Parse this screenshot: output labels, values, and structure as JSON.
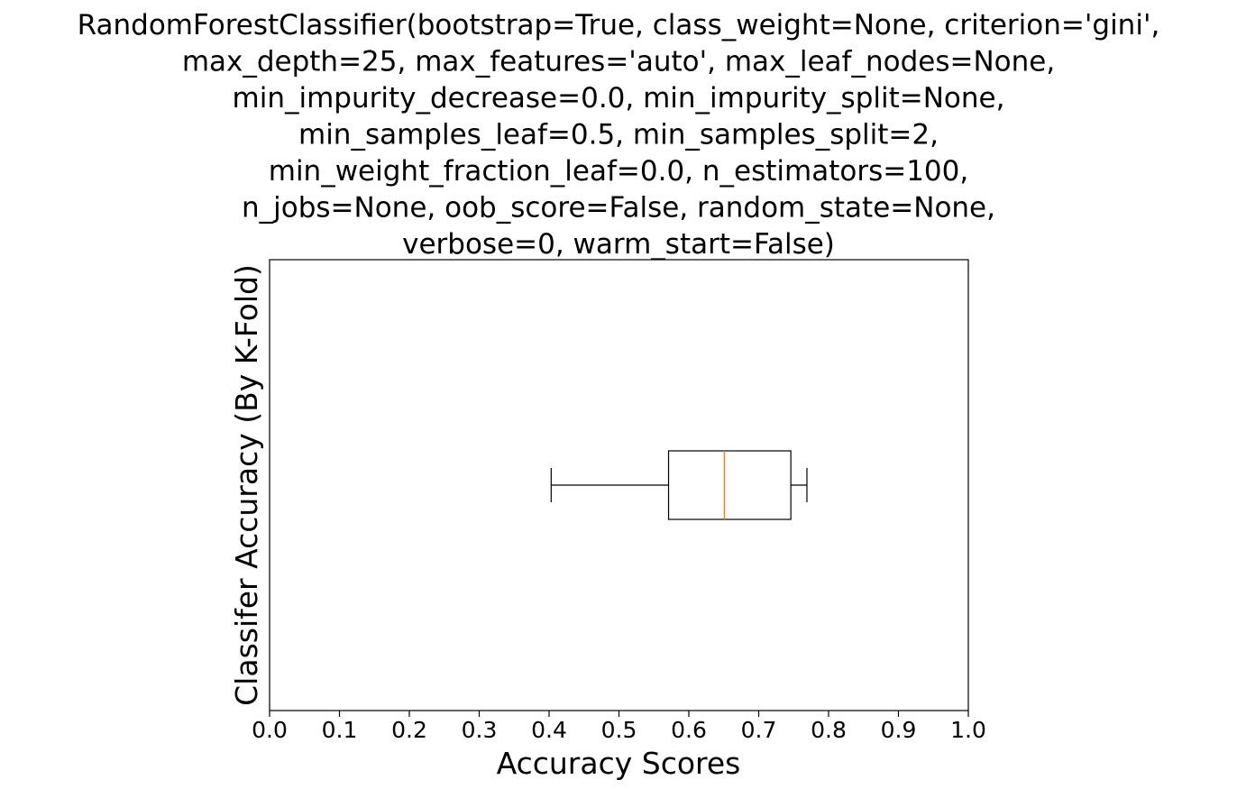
{
  "chart_data": {
    "type": "boxplot",
    "orientation": "horizontal",
    "title_lines": [
      "RandomForestClassifier(bootstrap=True, class_weight=None, criterion='gini',",
      "max_depth=25, max_features='auto', max_leaf_nodes=None,",
      "min_impurity_decrease=0.0, min_impurity_split=None,",
      "min_samples_leaf=0.5, min_samples_split=2,",
      "min_weight_fraction_leaf=0.0, n_estimators=100,",
      "n_jobs=None, oob_score=False, random_state=None,",
      "verbose=0, warm_start=False)"
    ],
    "xlabel": "Accuracy Scores",
    "ylabel": "Classifer Accuracy (By K-Fold)",
    "xlim": [
      0.0,
      1.0
    ],
    "xticks": [
      "0.0",
      "0.1",
      "0.2",
      "0.3",
      "0.4",
      "0.5",
      "0.6",
      "0.7",
      "0.8",
      "0.9",
      "1.0"
    ],
    "grid": false,
    "box": {
      "whisker_low": 0.403,
      "q1": 0.571,
      "median": 0.651,
      "q3": 0.746,
      "whisker_high": 0.769
    },
    "colors": {
      "box": "#000000",
      "median": "#ff7f0e"
    }
  }
}
